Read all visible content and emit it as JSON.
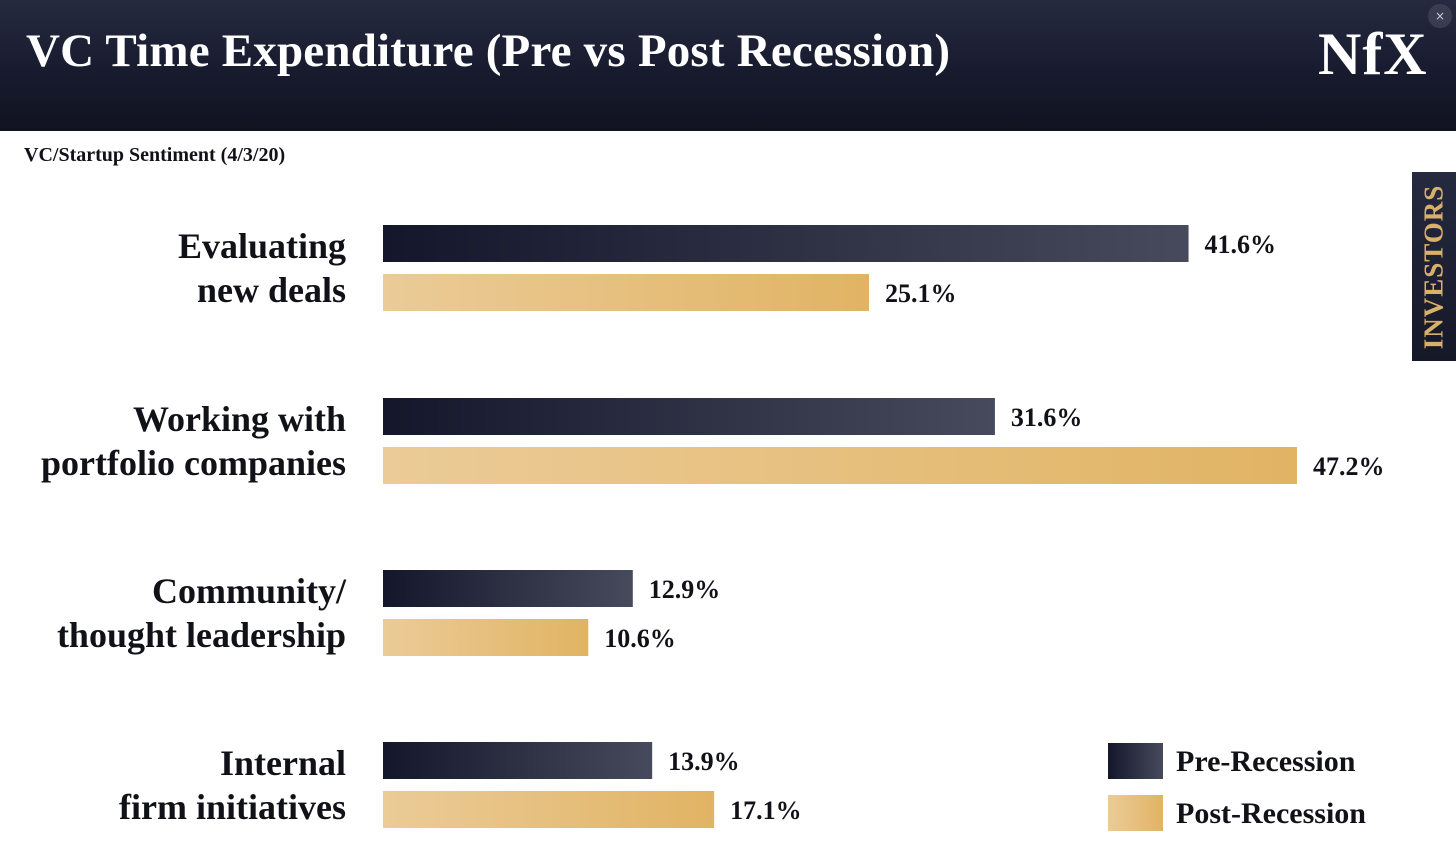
{
  "header": {
    "title": "VC Time Expenditure (Pre vs Post Recession)",
    "logo_text": "NfX",
    "close_label": "×"
  },
  "subtitle": "VC/Startup Sentiment (4/3/20)",
  "side_tab": {
    "label": "INVESTORS"
  },
  "colors": {
    "header_bg": "#1b1e32",
    "pre_dark": "#14162b",
    "pre_light": "#474a5c",
    "post_light": "#ebcb97",
    "post_dark": "#e1b464",
    "accent_gold": "#d9b06a"
  },
  "chart_data": {
    "type": "bar",
    "orientation": "horizontal",
    "categories": [
      [
        "Evaluating",
        "new deals"
      ],
      [
        "Working with",
        "portfolio companies"
      ],
      [
        "Community/",
        "thought leadership"
      ],
      [
        "Internal",
        "firm initiatives"
      ]
    ],
    "series": [
      {
        "name": "Pre-Recession",
        "values": [
          41.6,
          31.6,
          12.9,
          13.9
        ],
        "labels": [
          "41.6%",
          "31.6%",
          "12.9%",
          "13.9%"
        ]
      },
      {
        "name": "Post-Recession",
        "values": [
          25.1,
          47.2,
          10.6,
          17.1
        ],
        "labels": [
          "25.1%",
          "47.2%",
          "10.6%",
          "17.1%"
        ]
      }
    ],
    "value_suffix": "%",
    "xlim": [
      0,
      47.2
    ],
    "grid": false,
    "legend_position": "bottom-right"
  }
}
